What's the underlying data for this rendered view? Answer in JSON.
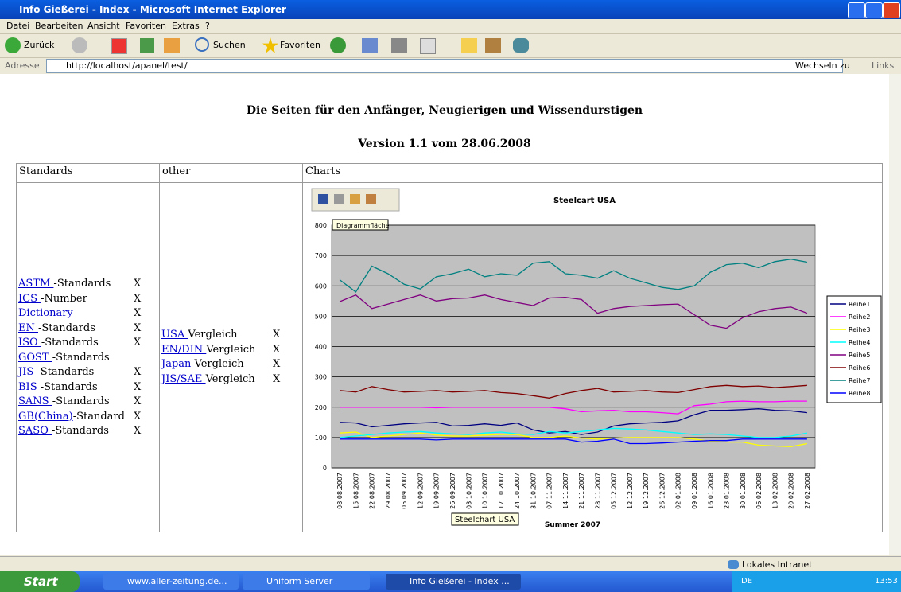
{
  "window": {
    "title": "Info Gießerei - Index - Microsoft Internet Explorer",
    "menu": [
      "Datei",
      "Bearbeiten",
      "Ansicht",
      "Favoriten",
      "Extras",
      "?"
    ],
    "toolbar": {
      "back": "Zurück",
      "search": "Suchen",
      "favorites": "Favoriten"
    },
    "address": {
      "label": "Adresse",
      "url": "http://localhost/apanel/test/",
      "go": "Wechseln zu",
      "links": "Links"
    },
    "status": "Lokales Intranet"
  },
  "taskbar": {
    "start": "Start",
    "tasks": [
      "www.aller-zeitung.de...",
      "Uniform Server",
      "Info Gießerei - Index ..."
    ],
    "lang": "DE",
    "clock": "13:53"
  },
  "header": {
    "title": "Die Seiten für den Anfänger, Neugierigen und Wissendurstigen",
    "version": "Version 1.1 vom 28.06.2008"
  },
  "table": {
    "headers": [
      "Standards",
      "other",
      "Charts"
    ],
    "standards": [
      {
        "link": "ASTM ",
        "text": "-Standards",
        "x": "X"
      },
      {
        "link": "ICS ",
        "text": "-Number",
        "x": "X"
      },
      {
        "link": "Dictionary ",
        "x": "X"
      },
      {
        "link": "EN ",
        "text": "-Standards",
        "x": "X"
      },
      {
        "link": "ISO ",
        "text": "-Standards",
        "x": "X"
      },
      {
        "link": "GOST ",
        "text": "-Standards"
      },
      {
        "link": "JIS ",
        "text": "-Standards",
        "x": "X"
      },
      {
        "link": "BIS ",
        "text": "-Standards",
        "x": "X"
      },
      {
        "link": "SANS ",
        "text": "-Standards",
        "x": "X"
      },
      {
        "link": "GB(China)",
        "text": "-Standard",
        "x": "X"
      },
      {
        "link": "SASO ",
        "text": "-Standards",
        "x": "X"
      }
    ],
    "other": [
      {
        "link": "USA ",
        "text": "Vergleich",
        "x": "X"
      },
      {
        "link": "EN/DIN ",
        "text": "Vergleich",
        "x": "X"
      },
      {
        "link": "Japan ",
        "text": "Vergleich",
        "x": "X"
      },
      {
        "link": "JIS/SAE ",
        "text": "Vergleich",
        "x": "X"
      }
    ]
  },
  "chart_tooltips": {
    "area": "Diagrammfläche",
    "chart": "Steelchart USA"
  },
  "chart_data": {
    "type": "line",
    "title": "Steelcart USA",
    "x_label": "Summer 2007",
    "categories": [
      "08.08.2007",
      "15.08.2007",
      "22.08.2007",
      "29.08.2007",
      "05.09.2007",
      "12.09.2007",
      "19.09.2007",
      "26.09.2007",
      "03.10.2007",
      "10.10.2007",
      "17.10.2007",
      "24.10.2007",
      "31.10.2007",
      "07.11.2007",
      "14.11.2007",
      "21.11.2007",
      "28.11.2007",
      "05.12.2007",
      "12.12.2007",
      "19.12.2007",
      "26.12.2007",
      "02.01.2008",
      "09.01.2008",
      "16.01.2008",
      "23.01.2008",
      "30.01.2008",
      "06.02.2008",
      "13.02.2008",
      "20.02.2008",
      "27.02.2008"
    ],
    "ylim": [
      0,
      800
    ],
    "yticks": [
      0,
      100,
      200,
      300,
      400,
      500,
      600,
      700,
      800
    ],
    "grid": true,
    "legend": "right",
    "series": [
      {
        "name": "Reihe1",
        "color": "#000080",
        "values": [
          150,
          148,
          135,
          140,
          145,
          148,
          150,
          138,
          140,
          145,
          140,
          148,
          125,
          115,
          120,
          110,
          118,
          138,
          145,
          148,
          150,
          155,
          175,
          190,
          190,
          192,
          195,
          190,
          188,
          182
        ]
      },
      {
        "name": "Reihe2",
        "color": "#ff00ff",
        "values": [
          200,
          200,
          200,
          200,
          200,
          200,
          198,
          200,
          200,
          200,
          200,
          200,
          200,
          200,
          195,
          185,
          188,
          190,
          185,
          185,
          182,
          178,
          205,
          210,
          218,
          220,
          218,
          218,
          220,
          220
        ]
      },
      {
        "name": "Reihe3",
        "color": "#ffff00",
        "values": [
          115,
          118,
          100,
          105,
          110,
          115,
          108,
          105,
          105,
          108,
          110,
          110,
          100,
          100,
          105,
          98,
          95,
          98,
          100,
          100,
          100,
          100,
          95,
          88,
          85,
          85,
          75,
          72,
          70,
          80
        ]
      },
      {
        "name": "Reihe4",
        "color": "#00ffff",
        "values": [
          100,
          105,
          110,
          115,
          118,
          120,
          115,
          112,
          110,
          115,
          118,
          112,
          110,
          120,
          115,
          120,
          125,
          130,
          128,
          125,
          120,
          115,
          110,
          112,
          110,
          105,
          100,
          100,
          105,
          115
        ]
      },
      {
        "name": "Reihe5",
        "color": "#800080",
        "values": [
          548,
          570,
          525,
          540,
          555,
          570,
          550,
          558,
          560,
          570,
          555,
          545,
          535,
          560,
          562,
          555,
          510,
          525,
          532,
          535,
          538,
          540,
          505,
          470,
          460,
          495,
          515,
          525,
          530,
          510
        ]
      },
      {
        "name": "Reihe6",
        "color": "#800000",
        "values": [
          255,
          250,
          268,
          258,
          250,
          252,
          255,
          250,
          252,
          255,
          248,
          245,
          238,
          230,
          245,
          255,
          262,
          250,
          252,
          255,
          250,
          248,
          258,
          268,
          272,
          268,
          270,
          265,
          268,
          272
        ]
      },
      {
        "name": "Reihe7",
        "color": "#008080",
        "values": [
          620,
          580,
          665,
          640,
          605,
          590,
          630,
          640,
          655,
          630,
          640,
          635,
          675,
          680,
          640,
          635,
          625,
          650,
          625,
          610,
          595,
          588,
          600,
          645,
          670,
          675,
          660,
          680,
          688,
          678
        ]
      },
      {
        "name": "Reihe8",
        "color": "#0000ff",
        "values": [
          95,
          95,
          95,
          95,
          95,
          95,
          92,
          95,
          95,
          95,
          95,
          95,
          95,
          95,
          95,
          85,
          88,
          95,
          80,
          80,
          82,
          85,
          88,
          90,
          90,
          95,
          95,
          95,
          95,
          95
        ]
      }
    ]
  }
}
